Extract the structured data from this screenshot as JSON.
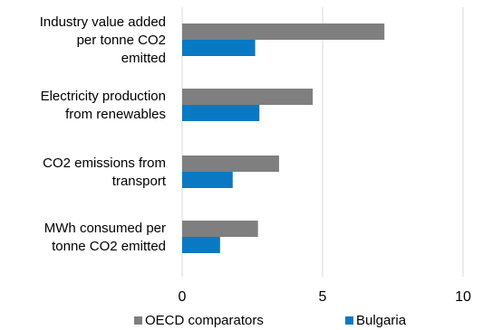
{
  "chart_data": {
    "type": "bar",
    "orientation": "horizontal",
    "categories": [
      "Industry value added per tonne CO2 emitted",
      "Electricity production from renewables",
      "CO2 emissions from transport",
      "MWh consumed per tonne CO2 emitted"
    ],
    "category_lines": [
      [
        "Industry value added",
        "per tonne CO2",
        "emitted"
      ],
      [
        "Electricity production",
        "from renewables"
      ],
      [
        "CO2 emissions from",
        "transport"
      ],
      [
        "MWh consumed per",
        "tonne CO2 emitted"
      ]
    ],
    "series": [
      {
        "name": "OECD comparators",
        "color": "#7f7f7f",
        "values": [
          7.2,
          4.65,
          3.45,
          2.7
        ]
      },
      {
        "name": "Bulgaria",
        "color": "#0a79c4",
        "values": [
          2.6,
          2.75,
          1.8,
          1.35
        ]
      }
    ],
    "xlim": [
      0,
      10
    ],
    "xticks": [
      "0",
      "5",
      "10"
    ],
    "grid": "vertical",
    "legend_position": "bottom",
    "title": "",
    "xlabel": "",
    "ylabel": ""
  }
}
